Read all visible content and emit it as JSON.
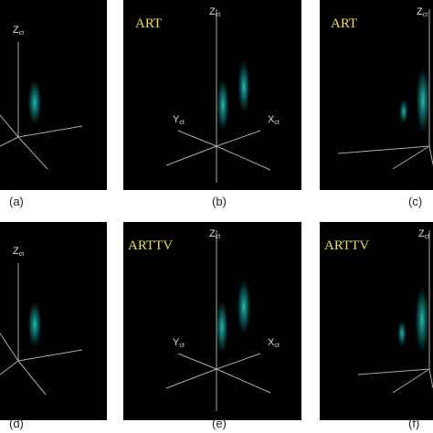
{
  "panels": [
    {
      "caption": "(a)",
      "axes": {
        "z": {
          "main": "Z",
          "sub": "ct"
        }
      }
    },
    {
      "caption": "(b)",
      "method": "ART",
      "axes": {
        "z": {
          "main": "Z",
          "sub": "ct"
        },
        "y": {
          "main": "Y",
          "sub": "ct"
        },
        "x": {
          "main": "X",
          "sub": "ct"
        }
      }
    },
    {
      "caption": "(c)",
      "method": "ART",
      "axes": {
        "z": {
          "main": "Z",
          "sub": "ct"
        }
      }
    },
    {
      "caption": "(d)",
      "axes": {
        "z": {
          "main": "Z",
          "sub": "ct"
        }
      }
    },
    {
      "caption": "(e)",
      "method": "ARTTV",
      "axes": {
        "z": {
          "main": "Z",
          "sub": "ct"
        },
        "y": {
          "main": "Y",
          "sub": "ct"
        },
        "x": {
          "main": "X",
          "sub": "ct"
        }
      }
    },
    {
      "caption": "(f)",
      "method": "ARTTV",
      "axes": {
        "z": {
          "main": "Z",
          "sub": "ct"
        }
      }
    }
  ]
}
